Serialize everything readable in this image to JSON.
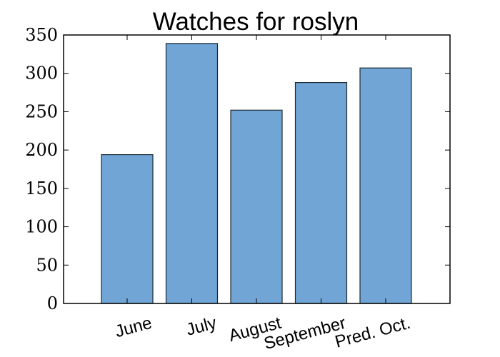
{
  "chart_data": {
    "type": "bar",
    "title": "Watches for roslyn",
    "xlabel": "",
    "ylabel": "",
    "categories": [
      "June",
      "July",
      "August",
      "September",
      "Pred. Oct."
    ],
    "values": [
      194,
      339,
      252,
      288,
      307
    ],
    "ylim": [
      0,
      350
    ],
    "yticks": [
      0,
      50,
      100,
      150,
      200,
      250,
      300,
      350
    ],
    "grid": false,
    "bar_color": "#70a5d5",
    "bar_edge_color": "#1f2a33"
  }
}
